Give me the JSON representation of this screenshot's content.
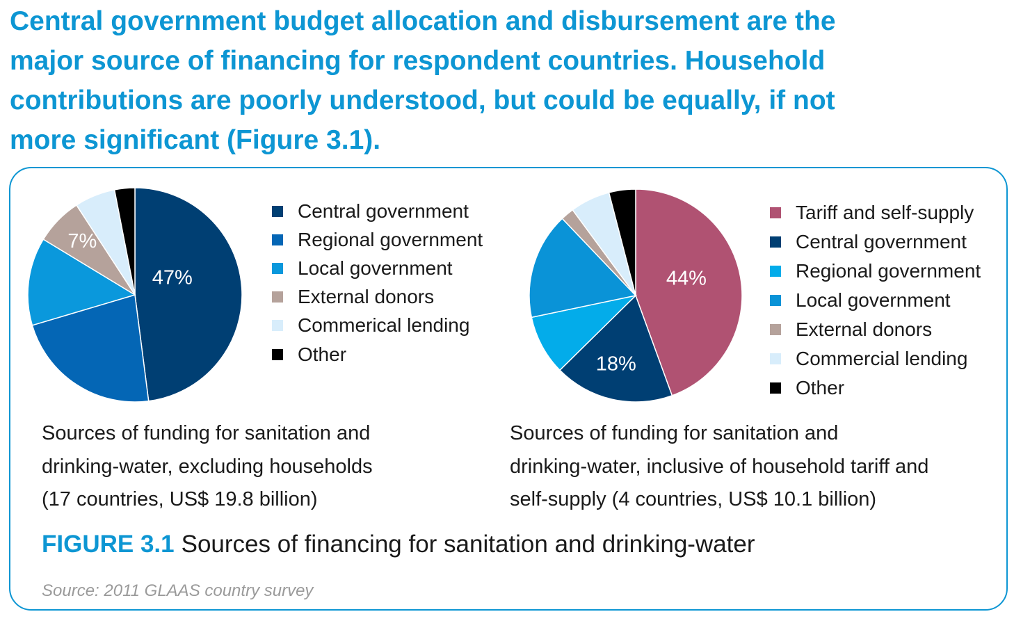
{
  "headline": {
    "lines": [
      "Central government budget allocation and disbursement are the",
      "major source of financing for respondent countries. Household",
      "contributions are poorly understood, but could be equally, if not",
      "more significant (Figure 3.1)."
    ]
  },
  "figure": {
    "number": "FIGURE 3.1",
    "title": "Sources of financing for sanitation and drinking-water",
    "source": "Source: 2011 GLAAS country survey"
  },
  "chart_data": [
    {
      "type": "pie",
      "caption_lines": [
        "Sources of funding for sanitation and",
        "drinking-water, excluding households",
        "(17 countries, US$ 19.8 billion)"
      ],
      "slices": [
        {
          "label": "Central government",
          "value": 47,
          "value_label": "47%",
          "color": "#003f73"
        },
        {
          "label": "Regional government",
          "value": 22,
          "value_label": "",
          "color": "#0466b5"
        },
        {
          "label": "Local government",
          "value": 13,
          "value_label": "",
          "color": "#0a98dc"
        },
        {
          "label": "External donors",
          "value": 7,
          "value_label": "7%",
          "color": "#b5a29b"
        },
        {
          "label": "Commerical lending",
          "value": 6,
          "value_label": "",
          "color": "#d8edfb"
        },
        {
          "label": "Other",
          "value": 3,
          "value_label": "",
          "color": "#000000"
        }
      ]
    },
    {
      "type": "pie",
      "caption_lines": [
        "Sources of funding for sanitation and",
        "drinking-water, inclusive of household tariff and",
        "self-supply (4 countries, US$ 10.1 billion)"
      ],
      "slices": [
        {
          "label": "Tariff and self-supply",
          "value": 44,
          "value_label": "44%",
          "color": "#b05272"
        },
        {
          "label": "Central government",
          "value": 18,
          "value_label": "18%",
          "color": "#003f73"
        },
        {
          "label": "Regional government",
          "value": 9,
          "value_label": "",
          "color": "#03acea"
        },
        {
          "label": "Local government",
          "value": 16,
          "value_label": "",
          "color": "#0a93d7"
        },
        {
          "label": "External donors",
          "value": 2,
          "value_label": "",
          "color": "#b5a29b"
        },
        {
          "label": "Commercial lending",
          "value": 6,
          "value_label": "",
          "color": "#d8edfb"
        },
        {
          "label": "Other",
          "value": 4,
          "value_label": "",
          "color": "#000000"
        }
      ]
    }
  ]
}
